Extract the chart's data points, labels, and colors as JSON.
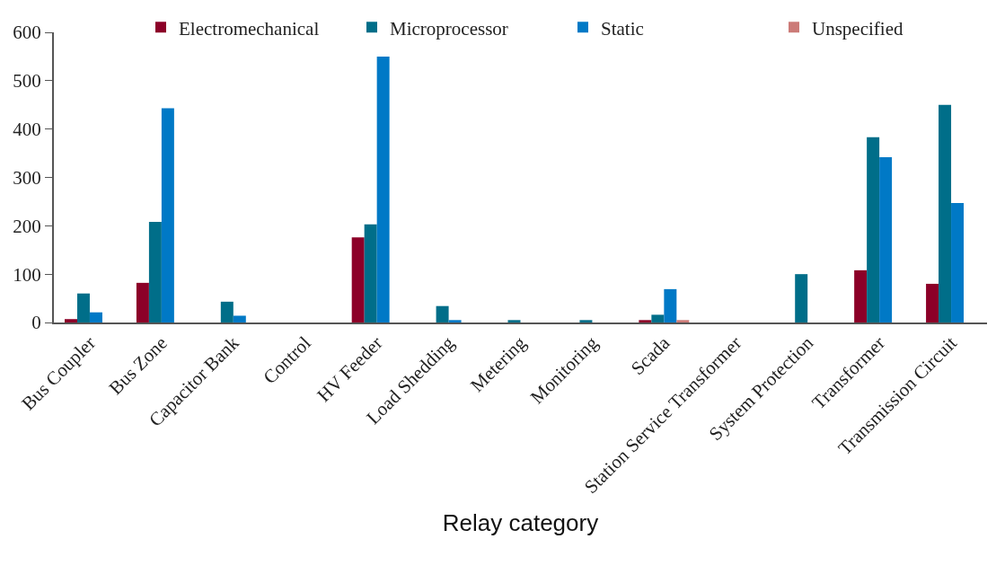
{
  "chart_data": {
    "type": "bar",
    "xlabel": "Relay category",
    "categories": [
      "Bus Coupler",
      "Bus Zone",
      "Capacitor Bank",
      "Control",
      "HV Feeder",
      "Load Shedding",
      "Metering",
      "Monitoring",
      "Scada",
      "Station Service Transformer",
      "System Protection",
      "Transformer",
      "Transmission Circuit"
    ],
    "series": [
      {
        "name": "Electromechanical",
        "color": "#8c0028",
        "values": [
          7,
          82,
          null,
          null,
          176,
          null,
          null,
          null,
          5,
          null,
          null,
          108,
          80
        ]
      },
      {
        "name": "Microprocessor",
        "color": "#006e89",
        "values": [
          60,
          208,
          43,
          null,
          203,
          34,
          5,
          5,
          16,
          null,
          100,
          383,
          450
        ]
      },
      {
        "name": "Static",
        "color": "#0079c6",
        "values": [
          21,
          443,
          14,
          null,
          550,
          5,
          null,
          null,
          69,
          null,
          null,
          342,
          247
        ]
      },
      {
        "name": "Unspecified",
        "color": "#cc7b78",
        "values": [
          null,
          null,
          null,
          null,
          null,
          null,
          null,
          null,
          5,
          null,
          null,
          null,
          null
        ]
      }
    ],
    "ylim": [
      0,
      600
    ],
    "yticks": [
      0,
      100,
      200,
      300,
      400,
      500,
      600
    ],
    "grid": false,
    "legend": "top right"
  }
}
